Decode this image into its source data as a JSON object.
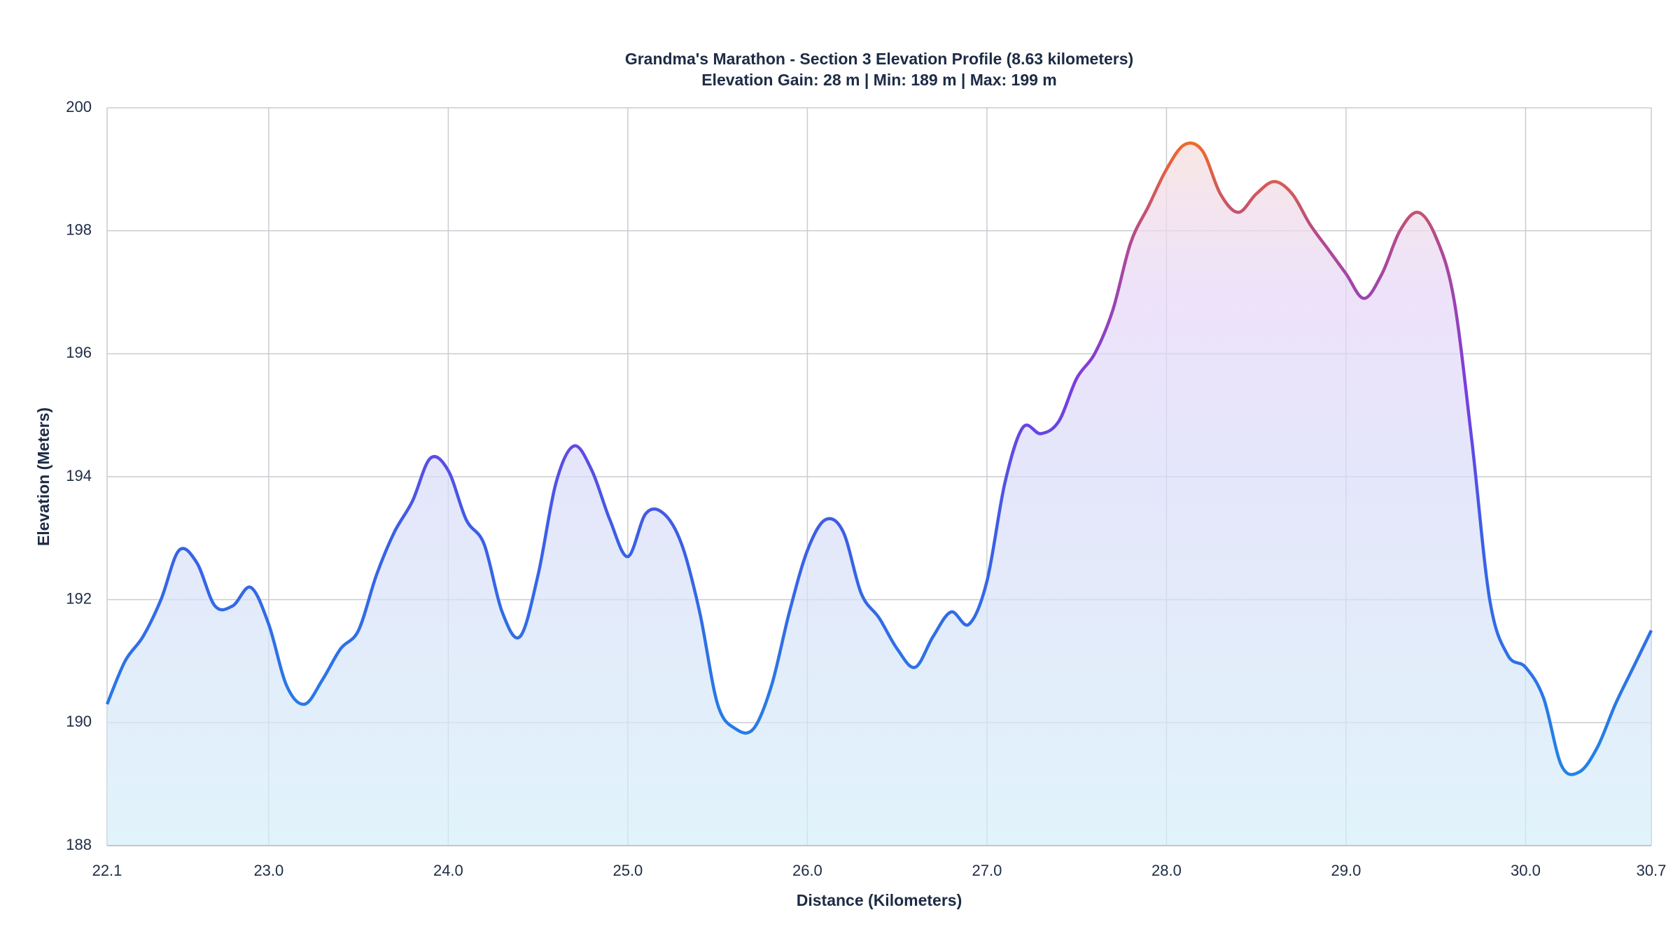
{
  "chart_data": {
    "type": "area",
    "title": "Grandma's Marathon - Section 3 Elevation Profile (8.63 kilometers)",
    "subtitle": "Elevation Gain: 28 m | Min: 189 m | Max: 199 m",
    "x_label": "Distance (Kilometers)",
    "y_label": "Elevation (Meters)",
    "x": [
      22.1,
      22.2,
      22.3,
      22.4,
      22.5,
      22.6,
      22.7,
      22.8,
      22.9,
      23.0,
      23.1,
      23.2,
      23.3,
      23.4,
      23.5,
      23.6,
      23.7,
      23.8,
      23.9,
      24.0,
      24.1,
      24.2,
      24.3,
      24.4,
      24.5,
      24.6,
      24.7,
      24.8,
      24.9,
      25.0,
      25.1,
      25.2,
      25.3,
      25.4,
      25.5,
      25.6,
      25.7,
      25.8,
      25.9,
      26.0,
      26.1,
      26.2,
      26.3,
      26.4,
      26.5,
      26.6,
      26.7,
      26.8,
      26.9,
      27.0,
      27.1,
      27.2,
      27.3,
      27.4,
      27.5,
      27.6,
      27.7,
      27.8,
      27.9,
      28.0,
      28.1,
      28.2,
      28.3,
      28.4,
      28.5,
      28.6,
      28.7,
      28.8,
      28.9,
      29.0,
      29.1,
      29.2,
      29.3,
      29.4,
      29.5,
      29.6,
      29.7,
      29.8,
      29.9,
      30.0,
      30.1,
      30.2,
      30.3,
      30.4,
      30.5,
      30.6,
      30.7
    ],
    "values": [
      190.3,
      191.0,
      191.4,
      192.0,
      192.8,
      192.6,
      191.9,
      191.9,
      192.2,
      191.6,
      190.6,
      190.3,
      190.7,
      191.2,
      191.5,
      192.4,
      193.1,
      193.6,
      194.3,
      194.1,
      193.3,
      192.9,
      191.8,
      191.4,
      192.4,
      193.9,
      194.5,
      194.1,
      193.3,
      192.7,
      193.4,
      193.4,
      192.9,
      191.8,
      190.3,
      189.9,
      189.9,
      190.6,
      191.8,
      192.8,
      193.3,
      193.1,
      192.1,
      191.7,
      191.2,
      190.9,
      191.4,
      191.8,
      191.6,
      192.3,
      193.9,
      194.8,
      194.7,
      194.9,
      195.6,
      196.0,
      196.7,
      197.8,
      198.4,
      199.0,
      199.4,
      199.3,
      198.6,
      198.3,
      198.6,
      198.8,
      198.6,
      198.1,
      197.7,
      197.3,
      196.9,
      197.3,
      198.0,
      198.3,
      197.9,
      196.9,
      194.6,
      192.0,
      191.1,
      190.9,
      190.4,
      189.3,
      189.2,
      189.6,
      190.3,
      190.9,
      191.5
    ],
    "xlim": [
      22.1,
      30.7
    ],
    "xticks": [
      22.1,
      {
        "value": 23,
        "label": "23.0"
      },
      {
        "value": 24,
        "label": "24.0"
      },
      {
        "value": 25,
        "label": "25.0"
      },
      {
        "value": 26,
        "label": "26.0"
      },
      {
        "value": 27,
        "label": "27.0"
      },
      {
        "value": 28,
        "label": "28.0"
      },
      {
        "value": 29,
        "label": "29.0"
      },
      {
        "value": 30,
        "label": "30.0"
      },
      30.7
    ],
    "ylim": [
      188,
      200
    ],
    "yticks": [
      188,
      190,
      192,
      194,
      196,
      198,
      200
    ],
    "grid": true
  }
}
